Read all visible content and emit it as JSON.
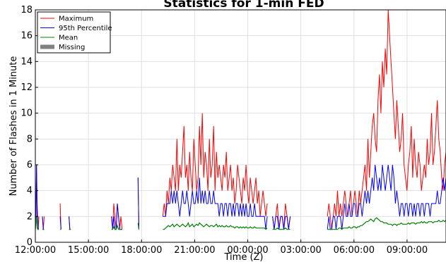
{
  "chart_data": {
    "type": "line",
    "title": "Statistics for 1-min FED",
    "xlabel": "Time (Z)",
    "ylabel": "Number of Flashes in 1 Minute",
    "ylim": [
      0,
      18
    ],
    "yticks": [
      0,
      2,
      4,
      6,
      8,
      10,
      12,
      14,
      16,
      18
    ],
    "xlim_hours": [
      12.0,
      35.2
    ],
    "xticks": [
      {
        "hour": 12,
        "label": "12:00:00"
      },
      {
        "hour": 15,
        "label": "15:00:00"
      },
      {
        "hour": 18,
        "label": "18:00:00"
      },
      {
        "hour": 21,
        "label": "21:00:00"
      },
      {
        "hour": 24,
        "label": "00:00:00"
      },
      {
        "hour": 27,
        "label": "03:00:00"
      },
      {
        "hour": 30,
        "label": "06:00:00"
      },
      {
        "hour": 33,
        "label": "09:00:00"
      }
    ],
    "grid": true,
    "legend_position": "upper-left",
    "legend": [
      {
        "name": "Maximum",
        "color": "#ff0000",
        "kind": "line"
      },
      {
        "name": "95th Percentile",
        "color": "#0000ff",
        "kind": "line"
      },
      {
        "name": "Mean",
        "color": "#008000",
        "kind": "line"
      },
      {
        "name": "Missing",
        "color": "#808080",
        "kind": "patch"
      }
    ],
    "segments": [
      {
        "start": 12.0,
        "end": 12.2,
        "max": [
          1,
          2,
          6,
          3,
          2,
          1,
          2
        ],
        "p95": [
          1,
          2,
          6,
          2,
          2,
          1,
          1
        ],
        "mean": [
          1,
          1.5,
          2,
          1.2,
          1,
          1,
          1
        ]
      },
      {
        "start": 12.4,
        "end": 12.5,
        "max": [
          2,
          1,
          2
        ],
        "p95": [
          2,
          1,
          1
        ],
        "mean": [
          1,
          1,
          1
        ]
      },
      {
        "start": 13.4,
        "end": 13.45,
        "max": [
          3,
          1
        ],
        "p95": [
          2,
          1
        ],
        "mean": [
          1,
          1
        ]
      },
      {
        "start": 13.9,
        "end": 14.0,
        "max": [
          2,
          1,
          1
        ],
        "p95": [
          2,
          1,
          1
        ],
        "mean": [
          1,
          1,
          1
        ]
      },
      {
        "start": 16.3,
        "end": 16.9,
        "max": [
          2,
          1,
          3,
          2,
          1,
          3,
          2,
          1,
          2,
          1
        ],
        "p95": [
          2,
          1,
          2,
          1,
          1,
          3,
          2,
          1,
          1,
          1
        ],
        "mean": [
          1,
          1,
          1.2,
          1,
          1,
          1.3,
          1,
          1,
          1,
          1
        ]
      },
      {
        "start": 17.8,
        "end": 17.85,
        "max": [
          5,
          1
        ],
        "p95": [
          5,
          1
        ],
        "mean": [
          1.5,
          1
        ]
      },
      {
        "start": 19.2,
        "end": 25.1,
        "max": [
          2,
          3,
          2,
          4,
          3,
          5,
          4,
          6,
          5,
          4,
          8,
          4,
          6,
          5,
          7,
          9,
          5,
          6,
          4,
          7,
          5,
          4,
          8,
          6,
          4,
          5,
          9,
          6,
          10,
          5,
          7,
          6,
          4,
          8,
          5,
          6,
          9,
          4,
          7,
          5,
          6,
          5,
          4,
          6,
          5,
          7,
          4,
          5,
          6,
          4,
          5,
          3,
          4,
          6,
          5,
          4,
          3,
          5,
          4,
          6,
          4,
          3,
          5,
          4,
          3,
          4,
          5,
          3,
          4,
          2,
          3,
          4,
          3,
          2,
          3
        ],
        "p95": [
          2,
          2,
          2,
          3,
          3,
          3,
          4,
          3,
          4,
          3,
          4,
          3,
          2,
          3,
          4,
          3,
          3,
          4,
          3,
          2,
          3,
          4,
          3,
          3,
          4,
          3,
          5,
          3,
          4,
          3,
          4,
          3,
          3,
          4,
          3,
          3,
          4,
          3,
          3,
          3,
          2,
          3,
          3,
          2,
          3,
          3,
          2,
          3,
          3,
          2,
          3,
          2,
          3,
          3,
          2,
          3,
          2,
          3,
          2,
          3,
          2,
          2,
          3,
          2,
          2,
          3,
          2,
          2,
          2,
          2,
          2,
          2,
          2,
          1,
          2
        ],
        "mean": [
          1,
          1,
          1.1,
          1.2,
          1.3,
          1.2,
          1.3,
          1.4,
          1.2,
          1.3,
          1.4,
          1.3,
          1.2,
          1.3,
          1.4,
          1.3,
          1.2,
          1.3,
          1.5,
          1.2,
          1.3,
          1.4,
          1.2,
          1.3,
          1.4,
          1.3,
          1.5,
          1.4,
          1.3,
          1.2,
          1.3,
          1.4,
          1.3,
          1.2,
          1.3,
          1.3,
          1.2,
          1.3,
          1.4,
          1.2,
          1.3,
          1.2,
          1.3,
          1.2,
          1.2,
          1.3,
          1.2,
          1.2,
          1.3,
          1.2,
          1.2,
          1.1,
          1.2,
          1.2,
          1.1,
          1.2,
          1.1,
          1.2,
          1.1,
          1.2,
          1.1,
          1.1,
          1.2,
          1.1,
          1.1,
          1.2,
          1.1,
          1.1,
          1.1,
          1.1,
          1.1,
          1.1,
          1.1,
          1,
          1.1
        ]
      },
      {
        "start": 25.4,
        "end": 26.4,
        "max": [
          2,
          1,
          2,
          3,
          1,
          2,
          2,
          1,
          3,
          2,
          1,
          2
        ],
        "p95": [
          2,
          1,
          2,
          2,
          1,
          2,
          2,
          1,
          2,
          2,
          1,
          2
        ],
        "mean": [
          1,
          1,
          1,
          1.1,
          1,
          1,
          1,
          1,
          1.1,
          1,
          1,
          1
        ]
      },
      {
        "start": 28.5,
        "end": 35.2,
        "max": [
          2,
          3,
          2,
          1,
          2,
          3,
          2,
          4,
          2,
          3,
          2,
          3,
          4,
          3,
          2,
          3,
          4,
          2,
          3,
          4,
          3,
          2,
          4,
          3,
          4,
          5,
          6,
          4,
          8,
          5,
          7,
          9,
          10,
          8,
          7,
          11,
          13,
          10,
          14,
          12,
          15,
          13,
          18,
          16,
          14,
          12,
          10,
          8,
          11,
          9,
          7,
          8,
          10,
          6,
          5,
          4,
          6,
          7,
          9,
          5,
          8,
          6,
          5,
          7,
          6,
          4,
          5,
          6,
          5,
          8,
          6,
          7,
          10,
          6,
          7,
          9,
          11,
          8,
          7,
          5,
          4,
          6,
          7
        ],
        "p95": [
          1,
          2,
          1,
          1,
          2,
          2,
          1,
          2,
          2,
          2,
          1,
          2,
          3,
          2,
          2,
          3,
          2,
          2,
          3,
          3,
          2,
          2,
          3,
          3,
          2,
          3,
          4,
          3,
          4,
          3,
          4,
          5,
          4,
          6,
          5,
          4,
          5,
          4,
          6,
          5,
          4,
          5,
          6,
          5,
          4,
          6,
          5,
          3,
          4,
          3,
          2,
          3,
          3,
          2,
          3,
          3,
          2,
          3,
          3,
          2,
          3,
          2,
          3,
          3,
          2,
          3,
          3,
          2,
          3,
          3,
          3,
          2,
          3,
          3,
          3,
          3,
          4,
          3,
          3,
          4,
          5,
          4,
          5
        ],
        "mean": [
          1,
          1,
          1,
          1,
          1,
          1,
          1,
          1,
          1.1,
          1.1,
          1,
          1.1,
          1.1,
          1.1,
          1.1,
          1.2,
          1.1,
          1.1,
          1.2,
          1.2,
          1.1,
          1.2,
          1.2,
          1.3,
          1.3,
          1.4,
          1.5,
          1.6,
          1.6,
          1.7,
          1.8,
          1.7,
          1.6,
          1.8,
          1.9,
          1.8,
          1.7,
          1.6,
          1.6,
          1.5,
          1.5,
          1.5,
          1.4,
          1.4,
          1.4,
          1.3,
          1.4,
          1.4,
          1.3,
          1.4,
          1.4,
          1.5,
          1.4,
          1.4,
          1.4,
          1.4,
          1.5,
          1.4,
          1.5,
          1.5,
          1.5,
          1.4,
          1.5,
          1.5,
          1.5,
          1.6,
          1.5,
          1.6,
          1.5,
          1.5,
          1.6,
          1.6,
          1.6,
          1.5,
          1.6,
          1.6,
          1.6,
          1.7,
          1.6,
          1.6,
          1.7,
          1.6,
          1.7
        ]
      }
    ]
  }
}
